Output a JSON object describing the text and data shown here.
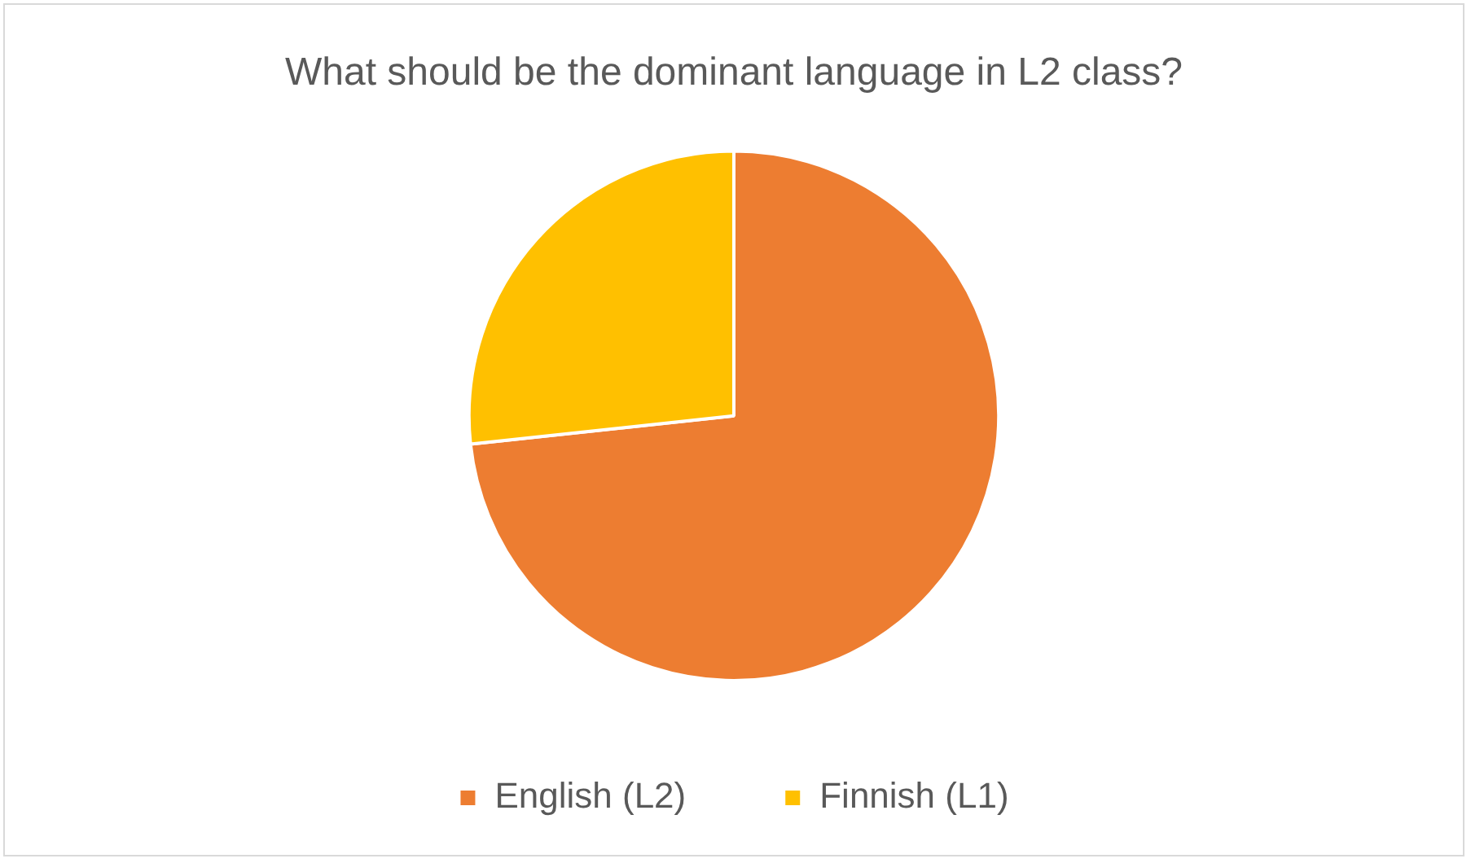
{
  "chart_data": {
    "type": "pie",
    "title": "What should be the dominant language in L2 class?",
    "categories": [
      "English (L2)",
      "Finnish (L1)"
    ],
    "values": [
      73.3,
      26.7
    ],
    "colors": [
      "#ed7d31",
      "#ffc000"
    ],
    "legend": "bottom"
  }
}
